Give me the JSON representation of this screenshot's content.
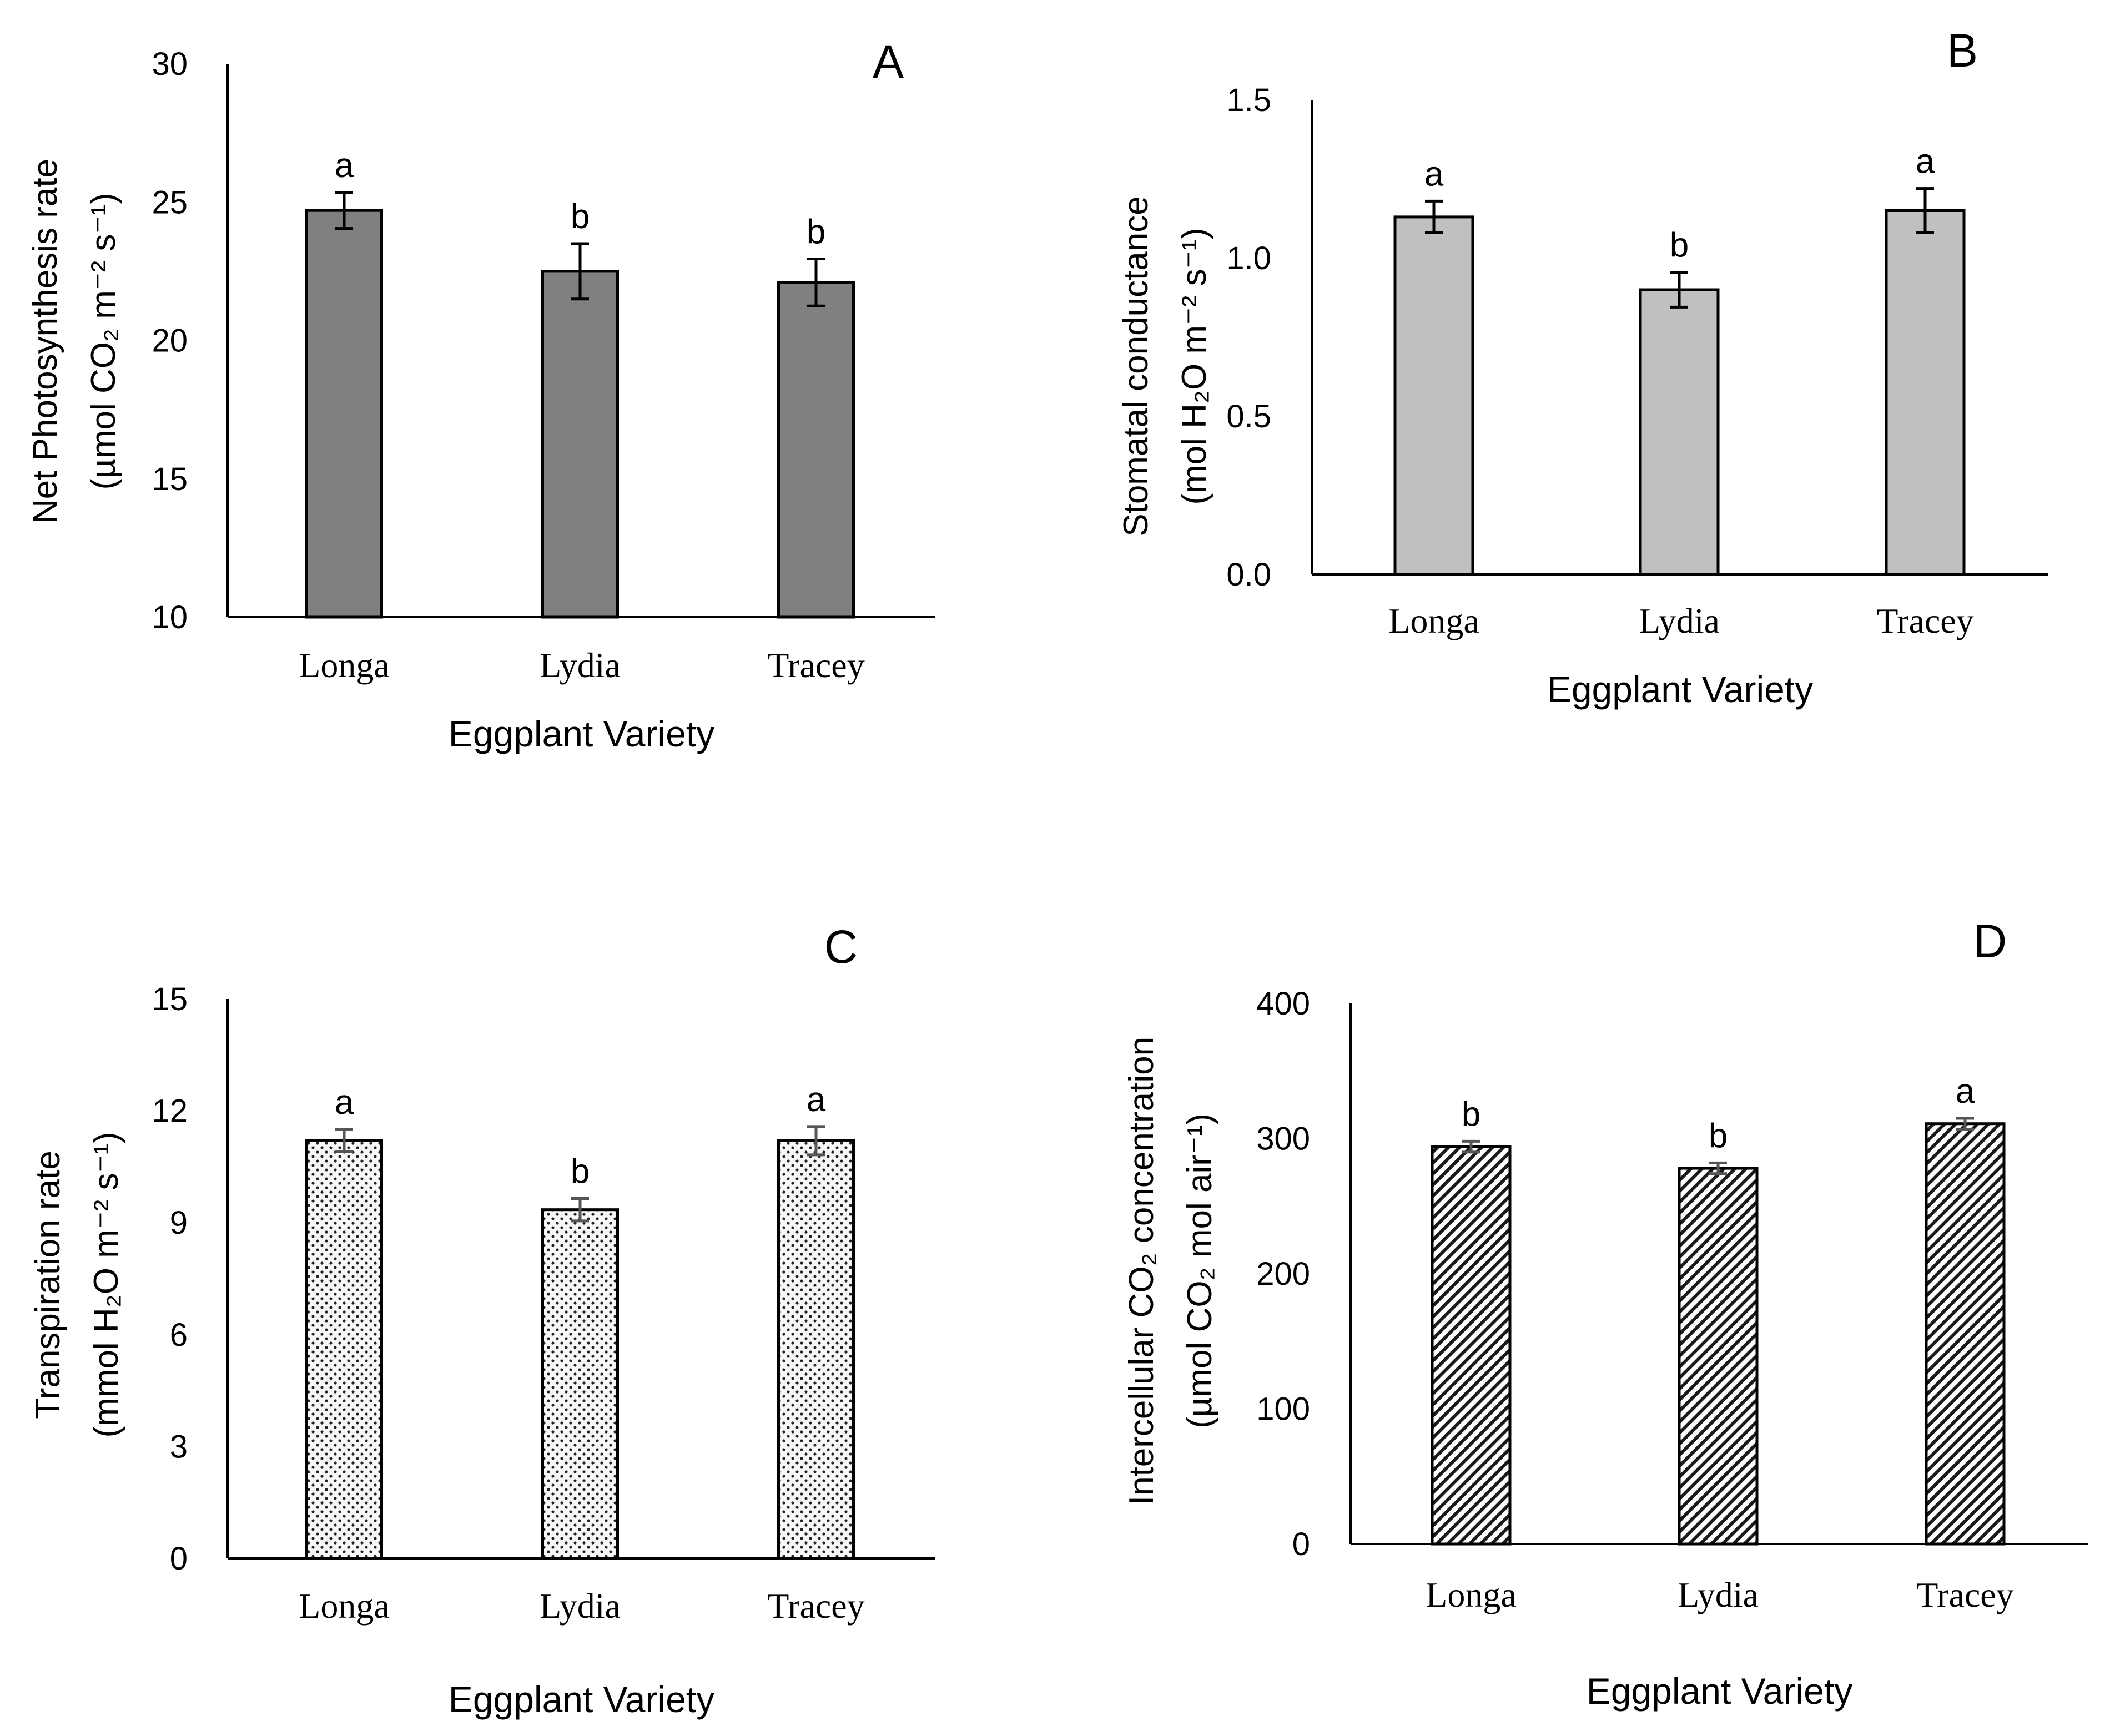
{
  "chart_data": [
    {
      "type": "bar",
      "panel_label": "A",
      "title": "",
      "xlabel": "Eggplant Variety",
      "ylabel_line1": "Net Photosynthesis rate",
      "ylabel_line2": "(µmol CO₂ m⁻² s⁻¹)",
      "categories": [
        "Longa",
        "Lydia",
        "Tracey"
      ],
      "values": [
        24.7,
        22.5,
        22.1
      ],
      "errors": [
        0.65,
        1.0,
        0.85
      ],
      "letters": [
        "a",
        "b",
        "b"
      ],
      "ylim": [
        10,
        30
      ],
      "yticks": [
        "10",
        "15",
        "20",
        "25",
        "30"
      ],
      "fill": "#808080",
      "pattern": "solid",
      "grid": false
    },
    {
      "type": "bar",
      "panel_label": "B",
      "title": "",
      "xlabel": "Eggplant Variety",
      "ylabel_line1": "Stomatal conductance",
      "ylabel_line2": "(mol H₂O m⁻² s⁻¹)",
      "categories": [
        "Longa",
        "Lydia",
        "Tracey"
      ],
      "values": [
        1.13,
        0.9,
        1.15
      ],
      "errors": [
        0.05,
        0.055,
        0.07
      ],
      "letters": [
        "a",
        "b",
        "a"
      ],
      "ylim": [
        0,
        1.5
      ],
      "yticks": [
        "0.0",
        "0.5",
        "1.0",
        "1.5"
      ],
      "fill": "#c0c0c0",
      "pattern": "solid",
      "grid": false
    },
    {
      "type": "bar",
      "panel_label": "C",
      "title": "",
      "xlabel": "Eggplant Variety",
      "ylabel_line1": "Transpiration rate",
      "ylabel_line2": "(mmol H₂O m⁻² s⁻¹)",
      "categories": [
        "Longa",
        "Lydia",
        "Tracey"
      ],
      "values": [
        11.2,
        9.35,
        11.2
      ],
      "errors": [
        0.3,
        0.3,
        0.38
      ],
      "letters": [
        "a",
        "b",
        "a"
      ],
      "ylim": [
        0,
        15
      ],
      "yticks": [
        "0",
        "3",
        "6",
        "9",
        "12",
        "15"
      ],
      "fill": "#f2f2f2",
      "pattern": "dots",
      "grid": false
    },
    {
      "type": "bar",
      "panel_label": "D",
      "title": "",
      "xlabel": "Eggplant Variety",
      "ylabel_line1": "Intercellular CO₂ concentration",
      "ylabel_line2": "(µmol CO₂ mol air⁻¹)",
      "categories": [
        "Longa",
        "Lydia",
        "Tracey"
      ],
      "values": [
        294,
        278,
        311
      ],
      "errors": [
        4,
        4,
        4
      ],
      "letters": [
        "b",
        "b",
        "a"
      ],
      "ylim": [
        0,
        400
      ],
      "yticks": [
        "0",
        "100",
        "200",
        "300",
        "400"
      ],
      "fill": "#ffffff",
      "pattern": "hatch",
      "grid": false
    }
  ]
}
